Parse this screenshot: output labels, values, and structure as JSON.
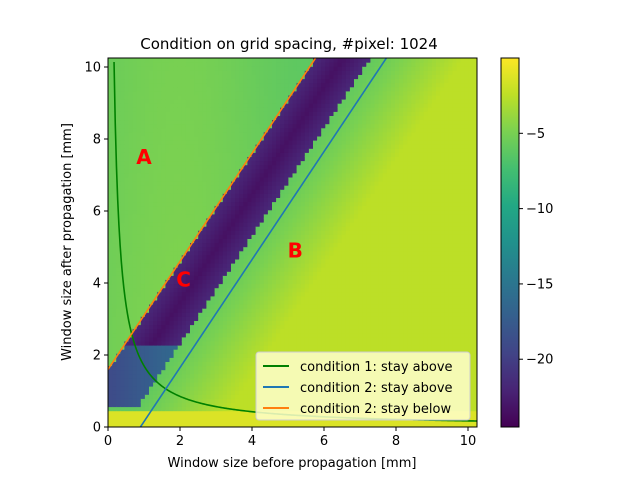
{
  "chart_data": {
    "type": "heatmap",
    "title": "Condition on grid spacing, #pixel: 1024",
    "xlabel": "Window size before propagation [mm]",
    "ylabel": "Window size after propagation [mm]",
    "xlim": [
      0,
      10.25
    ],
    "ylim": [
      0,
      10.25
    ],
    "xticks": [
      0,
      2,
      4,
      6,
      8,
      10
    ],
    "yticks": [
      0,
      2,
      4,
      6,
      8,
      10
    ],
    "colorbar": {
      "colormap": "viridis",
      "range": [
        -24.5,
        0
      ],
      "ticks": [
        -5,
        -10,
        -15,
        -20
      ],
      "tick_labels": [
        "−5",
        "−10",
        "−15",
        "−20"
      ]
    },
    "heatmap_bands": [
      {
        "region": "C (dark low-value band)",
        "lower_edge": "y = 1.5*(x - 0.4)",
        "upper_edge": "y = 1.5*x + 1.6",
        "value": -23
      },
      {
        "region": "A (upper left)",
        "value": -5
      },
      {
        "region": "B (lower right)",
        "value": -3
      }
    ],
    "series": [
      {
        "name": "condition 1: stay above",
        "color": "#008000",
        "function": "y = 1.7/x",
        "x_range": [
          0.1,
          10.25
        ]
      },
      {
        "name": "condition 2: stay above",
        "color": "#1f77b4",
        "function": "y = 1.5*x - 1.35",
        "x_range": [
          0.9,
          10.25
        ]
      },
      {
        "name": "condition 2: stay below",
        "color": "#ff7f0e",
        "function": "y = 1.5*x + 1.6",
        "x_range": [
          0,
          10.25
        ]
      }
    ],
    "annotations": [
      {
        "text": "A",
        "x": 1.0,
        "y": 7.5,
        "color": "#ff0000"
      },
      {
        "text": "B",
        "x": 5.2,
        "y": 4.9,
        "color": "#ff0000"
      },
      {
        "text": "C",
        "x": 2.1,
        "y": 4.1,
        "color": "#ff0000"
      }
    ],
    "legend_position": "lower-right",
    "grid": false
  }
}
